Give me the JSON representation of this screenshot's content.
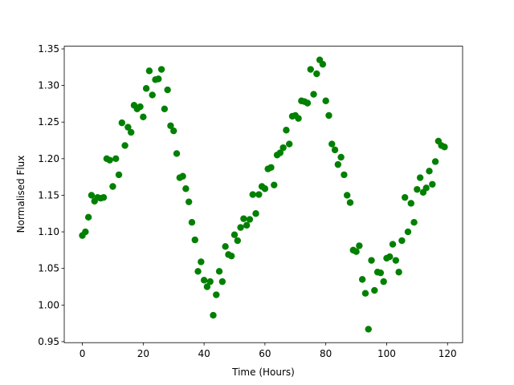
{
  "chart_data": {
    "type": "scatter",
    "xlabel": "Time (Hours)",
    "ylabel": "Normalised Flux",
    "color": "#008000",
    "x": [
      0,
      1,
      2,
      3,
      4,
      5,
      6,
      7,
      8,
      9,
      10,
      11,
      12,
      13,
      14,
      15,
      16,
      17,
      18,
      19,
      20,
      21,
      22,
      23,
      24,
      25,
      26,
      27,
      28,
      29,
      30,
      31,
      32,
      33,
      34,
      35,
      36,
      37,
      38,
      39,
      40,
      41,
      42,
      43,
      44,
      45,
      46,
      47,
      48,
      49,
      50,
      51,
      52,
      53,
      54,
      55,
      56,
      57,
      58,
      59,
      60,
      61,
      62,
      63,
      64,
      65,
      66,
      67,
      68,
      69,
      70,
      71,
      72,
      73,
      74,
      75,
      76,
      77,
      78,
      79,
      80,
      81,
      82,
      83,
      84,
      85,
      86,
      87,
      88,
      89,
      90,
      91,
      92,
      93,
      94,
      95,
      96,
      97,
      98,
      99,
      100,
      101,
      102,
      103,
      104,
      105,
      106,
      107,
      108,
      109,
      110,
      111,
      112,
      113,
      114,
      115,
      116,
      117,
      118,
      119
    ],
    "values": [
      1.095,
      1.1,
      1.12,
      1.15,
      1.142,
      1.147,
      1.146,
      1.147,
      1.2,
      1.198,
      1.162,
      1.2,
      1.178,
      1.249,
      1.218,
      1.243,
      1.236,
      1.273,
      1.268,
      1.271,
      1.257,
      1.296,
      1.32,
      1.287,
      1.308,
      1.309,
      1.322,
      1.268,
      1.294,
      1.245,
      1.238,
      1.207,
      1.174,
      1.176,
      1.159,
      1.141,
      1.113,
      1.089,
      1.046,
      1.059,
      1.034,
      1.025,
      1.032,
      0.986,
      1.014,
      1.046,
      1.032,
      1.08,
      1.069,
      1.067,
      1.096,
      1.088,
      1.106,
      1.118,
      1.109,
      1.117,
      1.151,
      1.125,
      1.151,
      1.162,
      1.159,
      1.186,
      1.188,
      1.164,
      1.205,
      1.208,
      1.215,
      1.239,
      1.22,
      1.258,
      1.259,
      1.255,
      1.279,
      1.278,
      1.276,
      1.322,
      1.288,
      1.316,
      1.335,
      1.329,
      1.279,
      1.259,
      1.22,
      1.212,
      1.192,
      1.202,
      1.178,
      1.15,
      1.14,
      1.075,
      1.073,
      1.081,
      1.035,
      1.016,
      0.967,
      1.061,
      1.02,
      1.045,
      1.044,
      1.032,
      1.064,
      1.066,
      1.083,
      1.061,
      1.045,
      1.088,
      1.147,
      1.1,
      1.139,
      1.113,
      1.158,
      1.174,
      1.154,
      1.16,
      1.183,
      1.165,
      1.196,
      1.224,
      1.218,
      1.216
    ],
    "xlim": [
      -5.95,
      124.95
    ],
    "xticks": [
      0,
      20,
      40,
      60,
      80,
      100,
      120
    ],
    "ylim": [
      0.9486,
      1.3537
    ],
    "yticks": [
      0.95,
      {
        "value": 1.0,
        "label": "1.00"
      },
      1.05,
      {
        "value": 1.1,
        "label": "1.10"
      },
      1.15,
      {
        "value": 1.2,
        "label": "1.20"
      },
      1.25,
      {
        "value": 1.3,
        "label": "1.30"
      },
      1.35
    ]
  }
}
